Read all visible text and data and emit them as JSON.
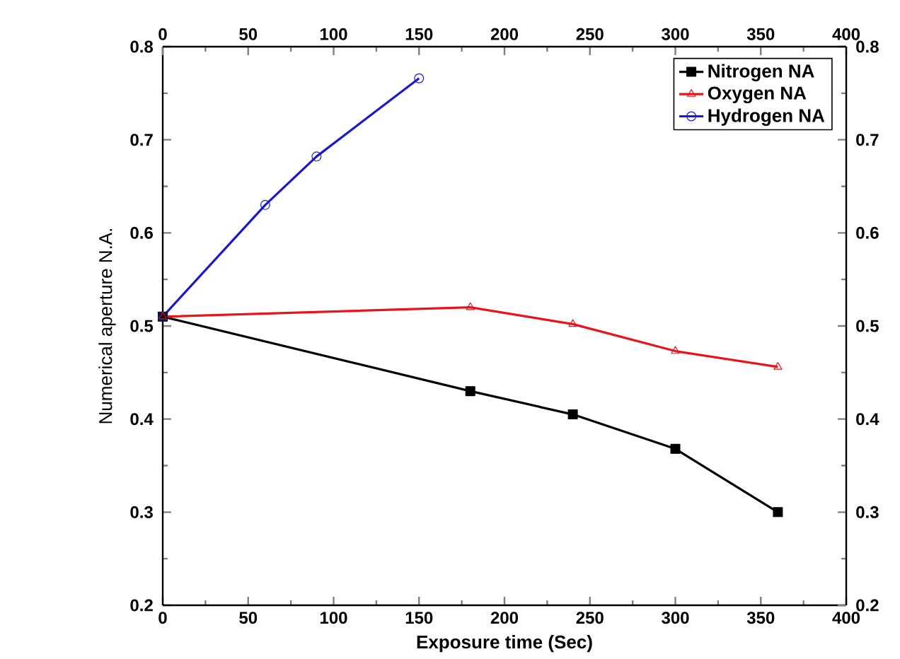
{
  "chart_data": {
    "type": "line",
    "xlabel": "Exposure time (Sec)",
    "ylabel": "Numerical aperture N.A.",
    "xlim": [
      0,
      400
    ],
    "xticks": [
      0,
      50,
      100,
      150,
      200,
      250,
      300,
      350,
      400
    ],
    "x2lim": [
      0,
      400
    ],
    "x2ticks": [
      0,
      50,
      100,
      150,
      200,
      250,
      300,
      350,
      400
    ],
    "ylim": [
      0.2,
      0.8
    ],
    "yticks": [
      0.2,
      0.3,
      0.4,
      0.5,
      0.6,
      0.7,
      0.8
    ],
    "y2lim": [
      0.2,
      0.8
    ],
    "y2ticks": [
      0.2,
      0.3,
      0.4,
      0.5,
      0.6,
      0.7,
      0.8
    ],
    "legend": "top right",
    "grid": false,
    "series": [
      {
        "name": "Nitrogen NA",
        "color": "#000000",
        "marker": "square",
        "x": [
          0,
          180,
          240,
          300,
          360
        ],
        "values": [
          0.51,
          0.43,
          0.405,
          0.368,
          0.3
        ]
      },
      {
        "name": "Oxygen NA",
        "color": "#e8141c",
        "marker": "triangle",
        "x": [
          0,
          180,
          240,
          300,
          360
        ],
        "values": [
          0.51,
          0.52,
          0.502,
          0.473,
          0.456
        ]
      },
      {
        "name": "Hydrogen NA",
        "color": "#1a1acc",
        "marker": "circle",
        "x": [
          0,
          60,
          90,
          150
        ],
        "values": [
          0.51,
          0.63,
          0.682,
          0.766
        ]
      }
    ]
  }
}
